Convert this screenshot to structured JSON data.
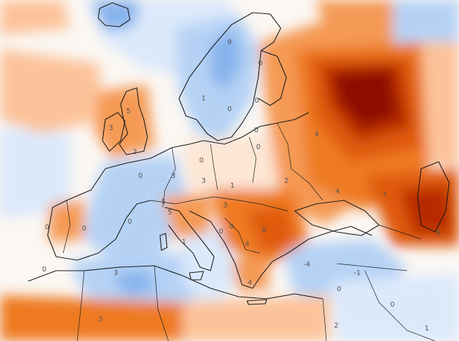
{
  "palette": {
    "neutral": "#fbf7f3",
    "warm_1": "#fde6d4",
    "warm_2": "#fcc39a",
    "warm_3": "#f59a55",
    "warm_4": "#ee7a22",
    "warm_5": "#df5a0c",
    "warm_6": "#b72a05",
    "warm_7": "#8c0a02",
    "cool_1": "#dbe9fb",
    "cool_2": "#b5d2f5",
    "cool_3": "#86b3ec",
    "cool_4": "#4f84d3",
    "border": "#1a1a1a"
  },
  "labels": [
    {
      "id": "norway",
      "text": "9"
    },
    {
      "id": "finland",
      "text": "0"
    },
    {
      "id": "scandinavia-west",
      "text": "1"
    },
    {
      "id": "sweden-mid",
      "text": "0"
    },
    {
      "id": "baltic",
      "text": "0"
    },
    {
      "id": "scotland",
      "text": "5"
    },
    {
      "id": "ireland",
      "text": "3"
    },
    {
      "id": "england",
      "text": "2"
    },
    {
      "id": "russia-west",
      "text": "4"
    },
    {
      "id": "belarus",
      "text": "0"
    },
    {
      "id": "poland",
      "text": "0"
    },
    {
      "id": "germany",
      "text": "0"
    },
    {
      "id": "france-north",
      "text": "3"
    },
    {
      "id": "france-west",
      "text": "0"
    },
    {
      "id": "czech",
      "text": "3"
    },
    {
      "id": "central-1",
      "text": "1"
    },
    {
      "id": "ukraine",
      "text": "2"
    },
    {
      "id": "russia-south",
      "text": "4"
    },
    {
      "id": "caspian",
      "text": "7"
    },
    {
      "id": "alps",
      "text": "5"
    },
    {
      "id": "italy-north",
      "text": "5"
    },
    {
      "id": "hungary",
      "text": "3"
    },
    {
      "id": "balkans-1",
      "text": "0"
    },
    {
      "id": "balkans-2",
      "text": "0"
    },
    {
      "id": "romania",
      "text": "6"
    },
    {
      "id": "bulgaria",
      "text": "4"
    },
    {
      "id": "spain",
      "text": "0"
    },
    {
      "id": "spain-west",
      "text": "0"
    },
    {
      "id": "spain-east",
      "text": "0"
    },
    {
      "id": "italy",
      "text": "1"
    },
    {
      "id": "turkey-west",
      "text": "-4"
    },
    {
      "id": "turkey-east",
      "text": "-1"
    },
    {
      "id": "caucasus",
      "text": "6"
    },
    {
      "id": "greece",
      "text": "4"
    },
    {
      "id": "algeria",
      "text": "3"
    },
    {
      "id": "morocco",
      "text": "0"
    },
    {
      "id": "sahara",
      "text": "3"
    },
    {
      "id": "levant",
      "text": "0"
    },
    {
      "id": "mideast",
      "text": "0"
    },
    {
      "id": "arabia",
      "text": "2"
    },
    {
      "id": "iran",
      "text": "1"
    }
  ]
}
